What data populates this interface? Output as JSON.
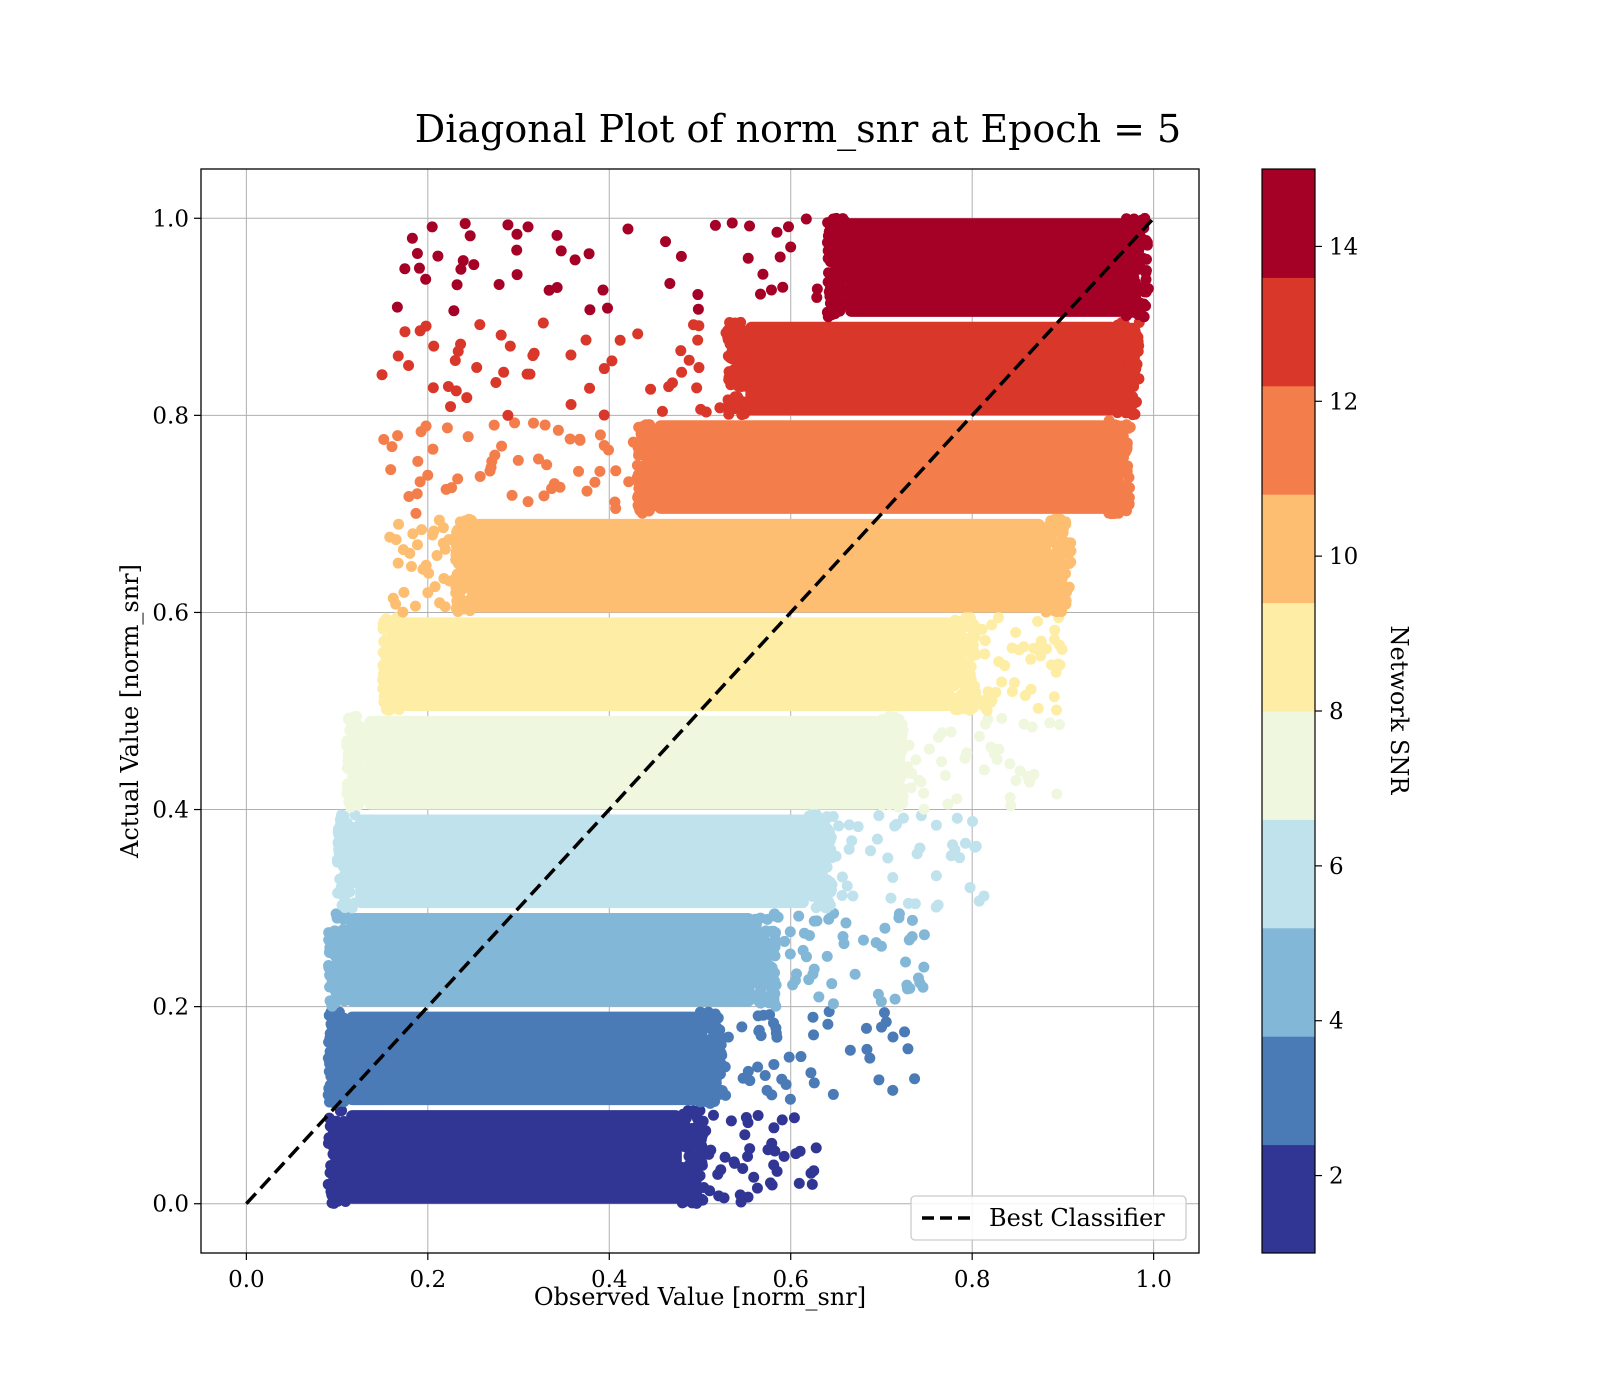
{
  "chart_data": {
    "type": "scatter",
    "title": "Diagonal Plot of norm_snr at Epoch = 5",
    "xlabel": "Observed Value [norm_snr]",
    "ylabel": "Actual Value [norm_snr]",
    "xlim": [
      -0.05,
      1.05
    ],
    "ylim": [
      -0.05,
      1.05
    ],
    "xticks": [
      "0.0",
      "0.2",
      "0.4",
      "0.6",
      "0.8",
      "1.0"
    ],
    "yticks": [
      "0.0",
      "0.2",
      "0.4",
      "0.6",
      "0.8",
      "1.0"
    ],
    "grid": true,
    "colorbar": {
      "label": "Network SNR",
      "range": [
        1,
        15
      ],
      "ticks": [
        "2",
        "4",
        "6",
        "8",
        "10",
        "12",
        "14"
      ],
      "colors": [
        "#313695",
        "#4575b4",
        "#74add1",
        "#abd9e9",
        "#e0f3f8",
        "#fee090",
        "#fdae61",
        "#f46d43",
        "#d73027",
        "#a50026"
      ],
      "note_colors_display": [
        "#313695",
        "#4a7bb7",
        "#82b7d8",
        "#bfe2ed",
        "#f0f7df",
        "#feeda5",
        "#fdbe71",
        "#f37e4b",
        "#d9372a",
        "#a50026"
      ]
    },
    "bands": [
      {
        "y_range": [
          0.0,
          0.095
        ],
        "core_x": [
          0.11,
          0.48
        ],
        "tail_x_max": 0.63
      },
      {
        "y_range": [
          0.1,
          0.195
        ],
        "core_x": [
          0.11,
          0.5
        ],
        "tail_x_max": 0.75
      },
      {
        "y_range": [
          0.2,
          0.295
        ],
        "core_x": [
          0.11,
          0.56
        ],
        "tail_x_max": 0.76
      },
      {
        "y_range": [
          0.3,
          0.395
        ],
        "core_x": [
          0.12,
          0.62
        ],
        "tail_x_max": 0.82
      },
      {
        "y_range": [
          0.4,
          0.495
        ],
        "core_x": [
          0.13,
          0.7
        ],
        "tail_x_max": 0.9
      },
      {
        "y_range": [
          0.5,
          0.595
        ],
        "core_x": [
          0.17,
          0.78
        ],
        "tail_x_max": 0.9
      },
      {
        "y_range": [
          0.6,
          0.695
        ],
        "core_x": [
          0.25,
          0.88
        ],
        "tail_x_max": 0.91
      },
      {
        "y_range": [
          0.7,
          0.795
        ],
        "core_x": [
          0.45,
          0.95
        ],
        "tail_x_max": 0.96
      },
      {
        "y_range": [
          0.8,
          0.895
        ],
        "core_x": [
          0.55,
          0.96
        ],
        "tail_x_max": 0.97
      },
      {
        "y_range": [
          0.9,
          1.0
        ],
        "core_x": [
          0.66,
          0.97
        ],
        "tail_x_max": 0.97
      }
    ],
    "reference_line": {
      "name": "Best Classifier",
      "x": [
        0.0,
        1.0
      ],
      "y": [
        0.0,
        1.0
      ],
      "style": "dashed",
      "color": "#000000"
    },
    "legend": {
      "placement": "lower-right",
      "entries": [
        "Best Classifier"
      ]
    }
  }
}
